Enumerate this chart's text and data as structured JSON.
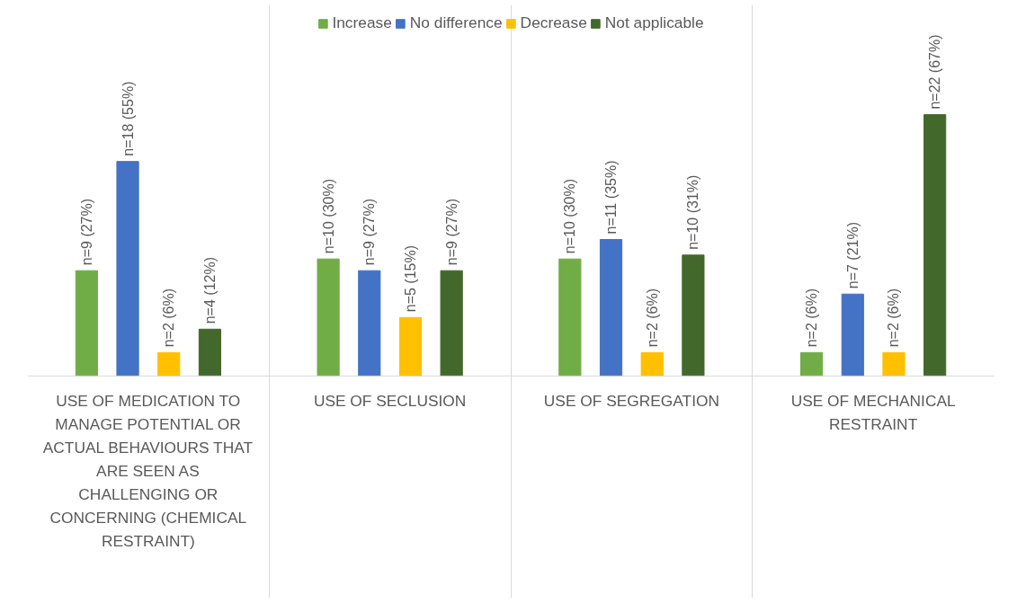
{
  "chart_data": {
    "type": "bar",
    "categories": [
      "USE OF MEDICATION TO MANAGE POTENTIAL OR ACTUAL BEHAVIOURS THAT ARE SEEN AS CHALLENGING OR CONCERNING (CHEMICAL RESTRAINT)",
      "USE OF SECLUSION",
      "USE OF SEGREGATION",
      "USE OF MECHANICAL RESTRAINT"
    ],
    "series": [
      {
        "name": "Increase",
        "color": "#70ad47",
        "values": [
          27,
          30,
          30,
          6
        ],
        "value_labels": [
          "n=9 (27%)",
          "n=10 (30%)",
          "n=10 (30%)",
          "n=2 (6%)"
        ]
      },
      {
        "name": "No difference",
        "color": "#4472c4",
        "values": [
          55,
          27,
          35,
          21
        ],
        "value_labels": [
          "n=18 (55%)",
          "n=9 (27%)",
          "n=11 (35%)",
          "n=7 (21%)"
        ]
      },
      {
        "name": "Decrease",
        "color": "#ffc000",
        "values": [
          6,
          15,
          6,
          6
        ],
        "value_labels": [
          "n=2 (6%)",
          "n=5 (15%)",
          "n=2 (6%)",
          "n=2 (6%)"
        ]
      },
      {
        "name": "Not applicable",
        "color": "#43682b",
        "values": [
          12,
          27,
          31,
          67
        ],
        "value_labels": [
          "n=4 (12%)",
          "n=9 (27%)",
          "n=10 (31%)",
          "n=22 (67%)"
        ]
      }
    ],
    "legend": "top",
    "grid": false
  }
}
